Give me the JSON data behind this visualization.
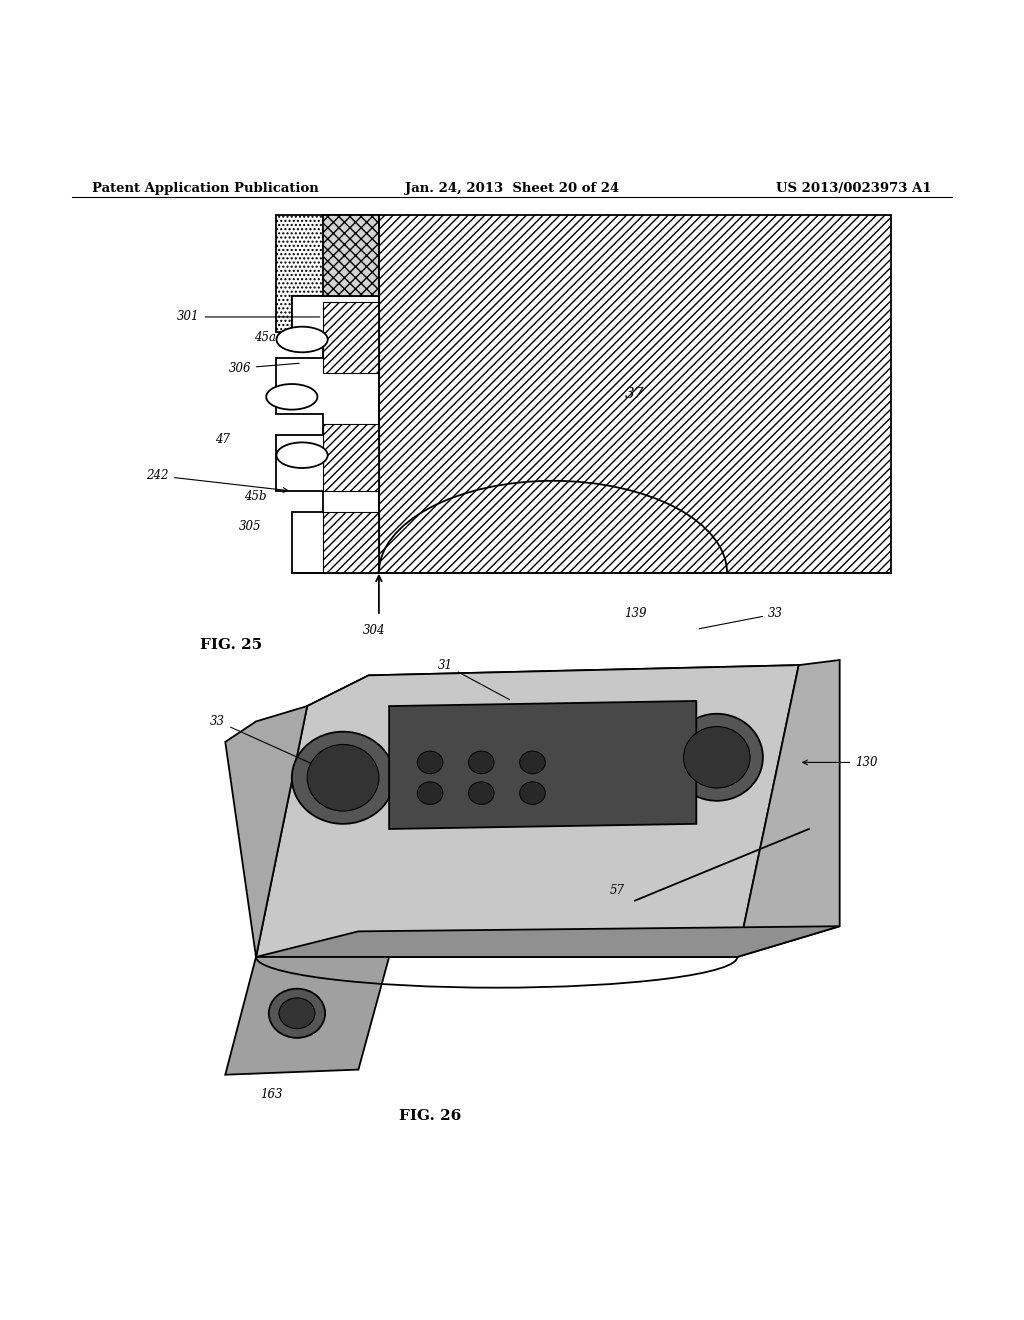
{
  "title_left": "Patent Application Publication",
  "title_center": "Jan. 24, 2013  Sheet 20 of 24",
  "title_right": "US 2013/0023973 A1",
  "fig25_label": "FIG. 25",
  "fig26_label": "FIG. 26",
  "bg_color": "#ffffff",
  "line_color": "#000000",
  "label_37_fontsize": 11,
  "label_default_fontsize": 8.5,
  "fig_label_fontsize": 11,
  "lw": 1.3
}
